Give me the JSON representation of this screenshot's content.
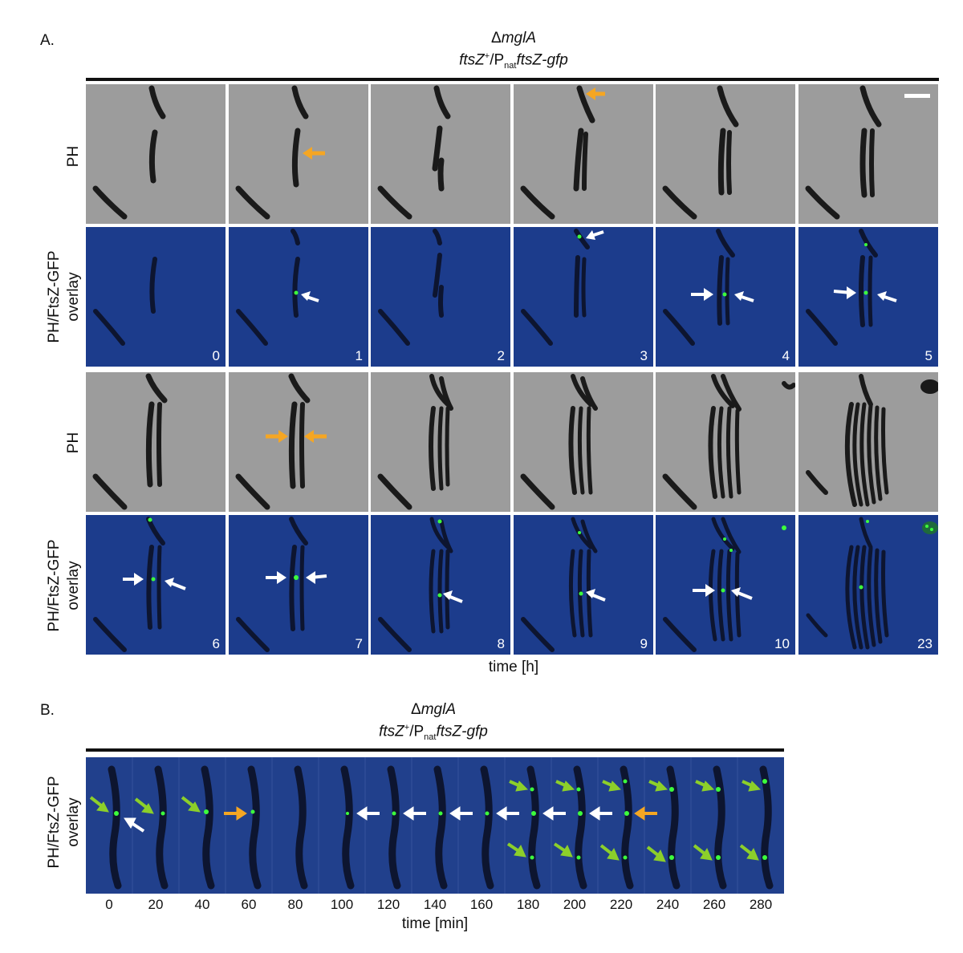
{
  "figure": {
    "panel_a": {
      "letter": "A.",
      "genotype_line1_prefix": "Δ",
      "genotype_line1_gene": "mglA",
      "genotype_line2_a": "ftsZ",
      "genotype_line2_sup": "+",
      "genotype_line2_b": "/P",
      "genotype_line2_sub": "nat",
      "genotype_line2_c": "ftsZ-gfp",
      "row_label_ph": "PH",
      "row_label_overlay_1": "PH/FtsZ-GFP",
      "row_label_overlay_2": "overlay",
      "timepoints_top": [
        "0",
        "1",
        "2",
        "3",
        "4",
        "5"
      ],
      "timepoints_bottom": [
        "6",
        "7",
        "8",
        "9",
        "10",
        "23"
      ],
      "axis_label": "time [h]",
      "colors": {
        "phase_background": "#9c9c9c",
        "overlay_background": "#1c3c8c",
        "ftsz_gfp": "#3cff3c",
        "arrow_orange": "#f5a623",
        "arrow_white": "#ffffff"
      }
    },
    "panel_b": {
      "letter": "B.",
      "genotype_line1_prefix": "Δ",
      "genotype_line1_gene": "mglA",
      "genotype_line2_a": "ftsZ",
      "genotype_line2_sup": "+",
      "genotype_line2_b": "/P",
      "genotype_line2_sub": "nat",
      "genotype_line2_c": "ftsZ-gfp",
      "row_label_1": "PH/FtsZ-GFP",
      "row_label_2": "overlay",
      "timepoints": [
        "0",
        "20",
        "40",
        "60",
        "80",
        "100",
        "120",
        "140",
        "160",
        "180",
        "200",
        "220",
        "240",
        "260",
        "280"
      ],
      "axis_label": "time [min]",
      "colors": {
        "overlay_background": "#21408c",
        "arrow_green": "#8ccf2a",
        "arrow_orange": "#f5a623",
        "arrow_white": "#ffffff"
      }
    }
  }
}
